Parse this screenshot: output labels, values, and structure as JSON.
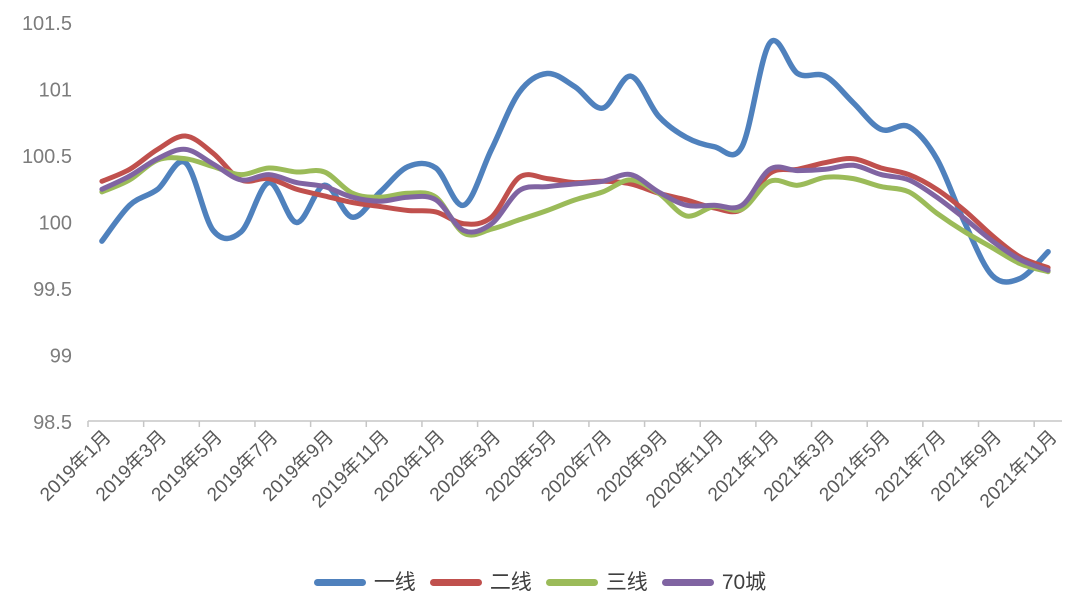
{
  "chart_data": {
    "type": "line",
    "title": "",
    "xlabel": "",
    "ylabel": "",
    "smooth": true,
    "grid": false,
    "legend_position": "bottom",
    "ylim": [
      98.5,
      101.5
    ],
    "y_ticks": [
      "98.5",
      "99",
      "99.5",
      "100",
      "100.5",
      "101",
      "101.5"
    ],
    "x_categories": [
      "2019年1月",
      "2019年2月",
      "2019年3月",
      "2019年4月",
      "2019年5月",
      "2019年6月",
      "2019年7月",
      "2019年8月",
      "2019年9月",
      "2019年10月",
      "2019年11月",
      "2019年12月",
      "2020年1月",
      "2020年2月",
      "2020年3月",
      "2020年4月",
      "2020年5月",
      "2020年6月",
      "2020年7月",
      "2020年8月",
      "2020年9月",
      "2020年10月",
      "2020年11月",
      "2020年12月",
      "2021年1月",
      "2021年2月",
      "2021年3月",
      "2021年4月",
      "2021年5月",
      "2021年6月",
      "2021年7月",
      "2021年8月",
      "2021年9月",
      "2021年10月",
      "2021年11月"
    ],
    "x_tick_labels": [
      "2019年1月",
      "2019年3月",
      "2019年5月",
      "2019年7月",
      "2019年9月",
      "2019年11月",
      "2020年1月",
      "2020年3月",
      "2020年5月",
      "2020年7月",
      "2020年9月",
      "2020年11月",
      "2021年1月",
      "2021年3月",
      "2021年5月",
      "2021年7月",
      "2021年9月",
      "2021年11月"
    ],
    "series": [
      {
        "name": "一线",
        "color": "#4F81BD",
        "values": [
          99.86,
          100.13,
          100.25,
          100.45,
          99.94,
          99.93,
          100.3,
          100.0,
          100.28,
          100.04,
          100.23,
          100.42,
          100.41,
          100.13,
          100.55,
          100.98,
          101.12,
          101.02,
          100.86,
          101.1,
          100.8,
          100.64,
          100.57,
          100.57,
          101.35,
          101.12,
          101.1,
          100.9,
          100.7,
          100.72,
          100.48,
          100.0,
          99.6,
          99.58,
          99.78
        ]
      },
      {
        "name": "二线",
        "color": "#C0504D",
        "values": [
          100.31,
          100.4,
          100.55,
          100.65,
          100.52,
          100.32,
          100.33,
          100.25,
          100.2,
          100.15,
          100.12,
          100.09,
          100.08,
          99.99,
          100.04,
          100.34,
          100.33,
          100.3,
          100.31,
          100.29,
          100.22,
          100.17,
          100.11,
          100.1,
          100.37,
          100.4,
          100.45,
          100.48,
          100.41,
          100.36,
          100.25,
          100.09,
          99.9,
          99.74,
          99.66
        ]
      },
      {
        "name": "三线",
        "color": "#9BBB59",
        "values": [
          100.23,
          100.32,
          100.47,
          100.48,
          100.42,
          100.36,
          100.41,
          100.38,
          100.38,
          100.22,
          100.19,
          100.22,
          100.19,
          99.92,
          99.95,
          100.02,
          100.09,
          100.17,
          100.23,
          100.32,
          100.22,
          100.05,
          100.12,
          100.1,
          100.31,
          100.28,
          100.34,
          100.33,
          100.27,
          100.23,
          100.07,
          99.93,
          99.81,
          99.69,
          99.63
        ]
      },
      {
        "name": "70城",
        "color": "#8064A2",
        "values": [
          100.25,
          100.35,
          100.48,
          100.55,
          100.44,
          100.32,
          100.36,
          100.3,
          100.27,
          100.19,
          100.16,
          100.19,
          100.17,
          99.94,
          99.99,
          100.24,
          100.27,
          100.29,
          100.31,
          100.36,
          100.23,
          100.13,
          100.13,
          100.13,
          100.4,
          100.39,
          100.4,
          100.43,
          100.36,
          100.32,
          100.19,
          100.03,
          99.86,
          99.72,
          99.64
        ]
      }
    ],
    "colors": {
      "axis_line": "#c6c6c6",
      "y_tick_label": "#7c7c7c",
      "x_tick_label": "#595959",
      "legend_text": "#3f3f3f",
      "background": "#ffffff"
    }
  }
}
